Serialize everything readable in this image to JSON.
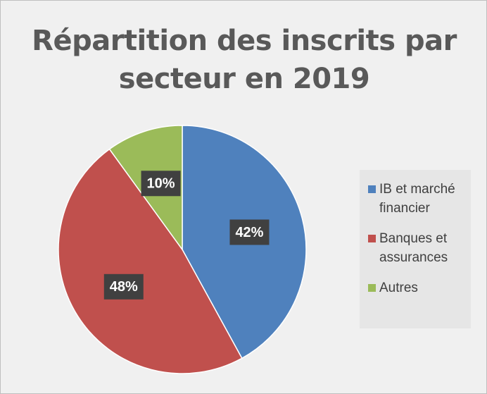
{
  "chart_data": {
    "type": "pie",
    "title": "Répartition des inscrits par secteur en 2019",
    "categories": [
      "IB et marché financier",
      "Banques et assurances",
      "Autres"
    ],
    "values": [
      42,
      48,
      10
    ],
    "value_labels": [
      "42%",
      "48%",
      "10%"
    ],
    "colors": [
      "#4f81bd",
      "#c0504d",
      "#9bbb59"
    ],
    "legend": "right"
  }
}
